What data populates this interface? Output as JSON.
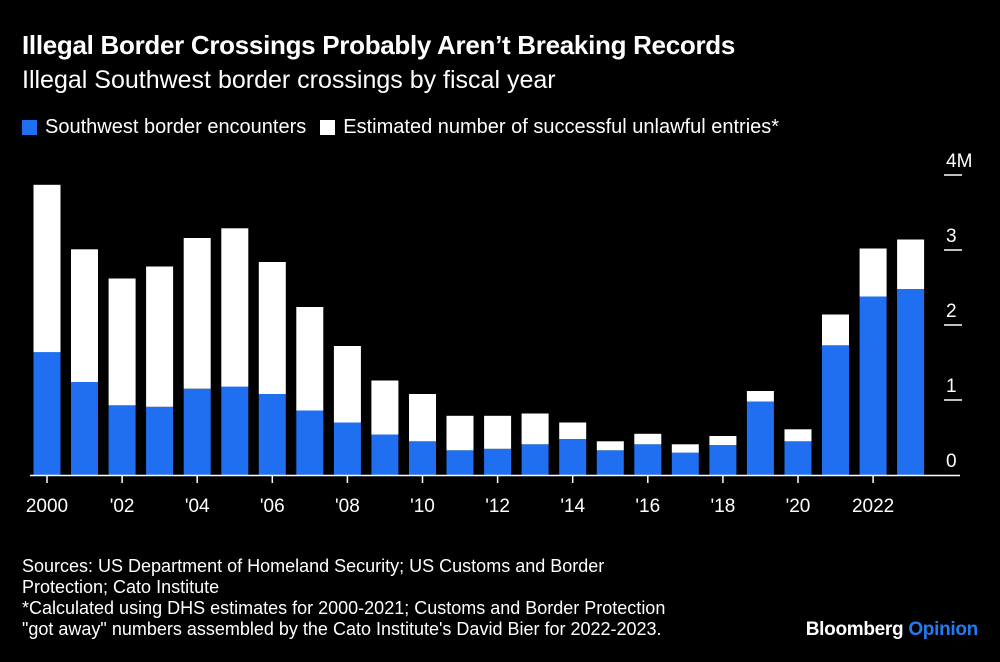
{
  "title": "Illegal Border Crossings Probably Aren’t Breaking Records",
  "subtitle": "Illegal Southwest border crossings by fiscal year",
  "colors": {
    "encounters": "#1f6ff0",
    "entries": "#ffffff",
    "background": "#000000",
    "brand_accent": "#1f7cf5"
  },
  "chart_data": {
    "type": "bar",
    "stacked": true,
    "years": [
      2000,
      2001,
      2002,
      2003,
      2004,
      2005,
      2006,
      2007,
      2008,
      2009,
      2010,
      2011,
      2012,
      2013,
      2014,
      2015,
      2016,
      2017,
      2018,
      2019,
      2020,
      2021,
      2022,
      2023
    ],
    "series": [
      {
        "name": "Southwest border encounters",
        "color": "#1f6ff0",
        "values": [
          1.64,
          1.24,
          0.93,
          0.91,
          1.15,
          1.18,
          1.08,
          0.86,
          0.7,
          0.54,
          0.45,
          0.33,
          0.35,
          0.41,
          0.48,
          0.33,
          0.41,
          0.3,
          0.4,
          0.98,
          0.45,
          1.73,
          2.38,
          2.48
        ]
      },
      {
        "name": "Estimated number of successful unlawful entries*",
        "color": "#ffffff",
        "values": [
          2.23,
          1.77,
          1.69,
          1.87,
          2.01,
          2.11,
          1.76,
          1.38,
          1.02,
          0.72,
          0.63,
          0.46,
          0.44,
          0.41,
          0.22,
          0.12,
          0.14,
          0.11,
          0.12,
          0.14,
          0.16,
          0.41,
          0.64,
          0.66
        ]
      }
    ],
    "x_tick_labels": [
      {
        "year": 2000,
        "label": "2000"
      },
      {
        "year": 2002,
        "label": "'02"
      },
      {
        "year": 2004,
        "label": "'04"
      },
      {
        "year": 2006,
        "label": "'06"
      },
      {
        "year": 2008,
        "label": "'08"
      },
      {
        "year": 2010,
        "label": "'10"
      },
      {
        "year": 2012,
        "label": "'12"
      },
      {
        "year": 2014,
        "label": "'14"
      },
      {
        "year": 2016,
        "label": "'16"
      },
      {
        "year": 2018,
        "label": "'18"
      },
      {
        "year": 2020,
        "label": "'20"
      },
      {
        "year": 2022,
        "label": "2022"
      }
    ],
    "y_ticks": [
      {
        "value": 4,
        "label": "4M"
      },
      {
        "value": 3,
        "label": "3"
      },
      {
        "value": 2,
        "label": "2"
      },
      {
        "value": 1,
        "label": "1"
      },
      {
        "value": 0,
        "label": "0"
      }
    ],
    "ylim": [
      0,
      4
    ],
    "ylabel": "",
    "xlabel": "",
    "legend_position": "top-left",
    "grid": false
  },
  "footer": {
    "sources_line1": "Sources: US Department of Homeland Security; US Customs and Border",
    "sources_line2": "Protection; Cato Institute",
    "note_line1": "*Calculated using DHS estimates for 2000-2021; Customs and Border Protection",
    "note_line2": "\"got away\" numbers assembled by the Cato Institute's David Bier for 2022-2023."
  },
  "brand": {
    "name": "Bloomberg",
    "section": "Opinion"
  }
}
